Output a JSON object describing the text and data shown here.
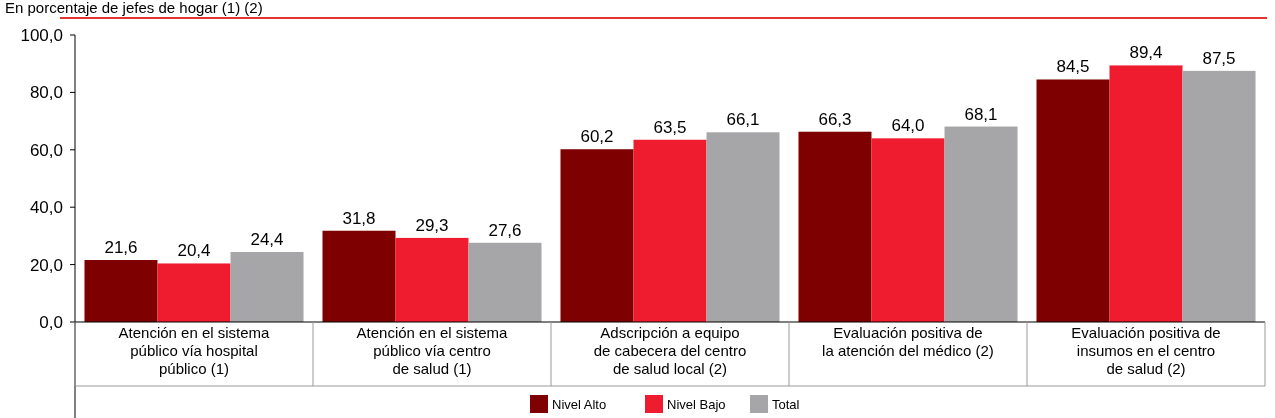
{
  "chart_data": {
    "type": "bar",
    "subtitle": "En porcentaje de jefes de hogar (1) (2)",
    "categories": [
      "Atención en el sistema\npúblico vía hospital\npúblico (1)",
      "Atención en el sistema\npúblico vía centro\nde salud (1)",
      "Adscripción a equipo\nde cabecera del centro\nde salud local (2)",
      "Evaluación positiva de\nla atención del médico (2)",
      "Evaluación positiva de\ninsumos en el centro\nde salud (2)"
    ],
    "series": [
      {
        "name": "Nivel Alto",
        "color": "#7f0000",
        "values": [
          21.6,
          31.8,
          60.2,
          66.3,
          84.5
        ],
        "value_labels": [
          "21,6",
          "31,8",
          "60,2",
          "66,3",
          "84,5"
        ]
      },
      {
        "name": "Nivel Bajo",
        "color": "#ee1c2e",
        "values": [
          20.4,
          29.3,
          63.5,
          64.0,
          89.4
        ],
        "value_labels": [
          "20,4",
          "29,3",
          "63,5",
          "64,0",
          "89,4"
        ]
      },
      {
        "name": "Total",
        "color": "#a6a6a8",
        "values": [
          24.4,
          27.6,
          66.1,
          68.1,
          87.5
        ],
        "value_labels": [
          "24,4",
          "27,6",
          "66,1",
          "68,1",
          "87,5"
        ]
      }
    ],
    "ylim": [
      0,
      100
    ],
    "yticks": [
      {
        "value": 0,
        "label": "0,0"
      },
      {
        "value": 20,
        "label": "20,0"
      },
      {
        "value": 40,
        "label": "40,0"
      },
      {
        "value": 60,
        "label": "60,0"
      },
      {
        "value": 80,
        "label": "80,0"
      },
      {
        "value": 100,
        "label": "100,0"
      }
    ],
    "grid": false,
    "legend": "bottom"
  }
}
